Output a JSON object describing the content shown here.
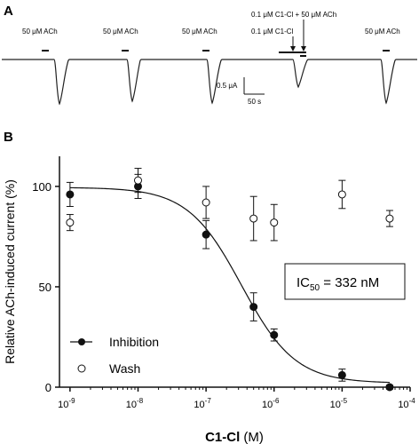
{
  "panel_a": {
    "letter": "A",
    "trace_labels": [
      "50 μM ACh",
      "50 μM ACh",
      "50 μM ACh",
      "50 μM ACh"
    ],
    "combo_label_top": "0.1 μM C1-Cl + 50 μM ACh",
    "combo_label_bottom": "0.1 μM C1-Cl",
    "scale_current": "0.5 μA",
    "scale_time": "50 s"
  },
  "panel_b": {
    "letter": "B",
    "ic50_label": "IC50 = 332 nM",
    "ic50_prefix": "IC",
    "ic50_sub": "50",
    "ic50_suffix": " = 332 nM"
  },
  "chart_data": {
    "type": "scatter",
    "xlabel_bold": "C1-Cl",
    "xlabel_unit": " (M)",
    "ylabel": "Relative ACh-induced current (%)",
    "x_scale": "log",
    "xlim": [
      7e-10,
      0.0001
    ],
    "ylim": [
      0,
      115
    ],
    "y_ticks": [
      0,
      50,
      100
    ],
    "x_tick_labels": [
      {
        "base": "10",
        "exp": "-9"
      },
      {
        "base": "10",
        "exp": "-8"
      },
      {
        "base": "10",
        "exp": "-7"
      },
      {
        "base": "10",
        "exp": "-6"
      },
      {
        "base": "10",
        "exp": "-5"
      },
      {
        "base": "10",
        "exp": "-4"
      }
    ],
    "series": [
      {
        "name": "Inhibition",
        "marker": "filled-circle",
        "x": [
          1e-09,
          1e-08,
          1e-07,
          5e-07,
          1e-06,
          1e-05,
          5e-05
        ],
        "y": [
          96,
          100,
          76,
          40,
          26,
          6,
          0
        ],
        "err": [
          6,
          6,
          7,
          7,
          3,
          3,
          1
        ]
      },
      {
        "name": "Wash",
        "marker": "open-circle",
        "x": [
          1e-09,
          1e-08,
          1e-07,
          5e-07,
          1e-06,
          1e-05,
          5e-05
        ],
        "y": [
          82,
          103,
          92,
          84,
          82,
          96,
          84
        ],
        "err": [
          4,
          6,
          8,
          11,
          9,
          7,
          4
        ]
      }
    ],
    "fit": {
      "top": 99.5,
      "bottom": 2,
      "ic50": 3.32e-07,
      "hill": 1.1
    },
    "legend_position": "bottom-left"
  }
}
